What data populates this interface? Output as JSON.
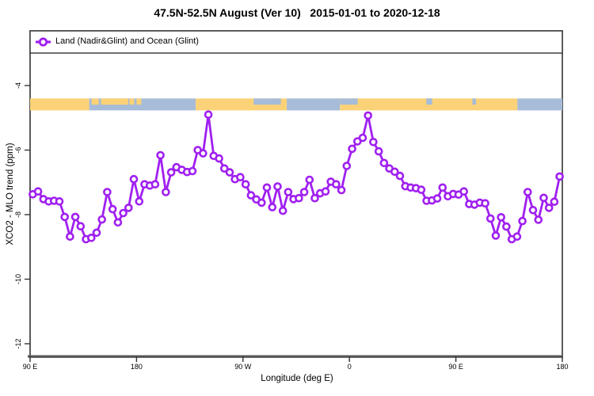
{
  "title": "47.5N-52.5N August (Ver 10)   2015-01-01 to 2020-12-18",
  "legend": {
    "label": "Land (Nadir&Glint) and Ocean (Glint)",
    "marker": "open-circle-on-line",
    "color": "#A020F0"
  },
  "axes": {
    "xlabel": "Longitude (deg E)",
    "ylabel": "XCO2 - MLO trend (ppm)",
    "x_ticks": [
      {
        "pos": 0,
        "label": "90 E"
      },
      {
        "pos": 90,
        "label": "180"
      },
      {
        "pos": 180,
        "label": "90 W"
      },
      {
        "pos": 270,
        "label": "0"
      },
      {
        "pos": 360,
        "label": "90 E"
      },
      {
        "pos": 450,
        "label": "180"
      }
    ],
    "y_ticks": [
      "-4",
      "-6",
      "-8",
      "-10",
      "-12"
    ]
  },
  "chart_data": {
    "type": "line",
    "title": "47.5N-52.5N August (Ver 10)   2015-01-01 to 2020-12-18",
    "xlabel": "Longitude (deg E)",
    "ylabel": "XCO2 - MLO trend (ppm)",
    "x_unit": "degrees east of 90E along axis (axis spans 450 deg, wrapping 90E-180-90W-0-90E-180)",
    "xlim": [
      0,
      450
    ],
    "ylim": [
      -12.45,
      -2.3
    ],
    "y_tick_values": [
      -4,
      -6,
      -8,
      -10,
      -12
    ],
    "grid": false,
    "legend_position": "top-left full-width box",
    "x": [
      2.25,
      6.75,
      11.25,
      15.75,
      20.25,
      24.75,
      29.25,
      33.75,
      38.25,
      42.75,
      47.25,
      51.75,
      56.25,
      60.75,
      65.25,
      69.75,
      74.25,
      78.75,
      83.25,
      87.75,
      92.25,
      96.75,
      101.25,
      105.75,
      110.25,
      114.75,
      119.25,
      123.75,
      128.25,
      132.75,
      137.25,
      141.75,
      146.25,
      150.75,
      155.25,
      159.75,
      164.25,
      168.75,
      173.25,
      177.75,
      182.25,
      186.75,
      191.25,
      195.75,
      200.25,
      204.75,
      209.25,
      213.75,
      218.25,
      222.75,
      227.25,
      231.75,
      236.25,
      240.75,
      245.25,
      249.75,
      254.25,
      258.75,
      263.25,
      267.75,
      272.25,
      276.75,
      281.25,
      285.75,
      290.25,
      294.75,
      299.25,
      303.75,
      308.25,
      312.75,
      317.25,
      321.75,
      326.25,
      330.75,
      335.25,
      339.75,
      344.25,
      348.75,
      353.25,
      357.75,
      362.25,
      366.75,
      371.25,
      375.75,
      380.25,
      384.75,
      389.25,
      393.75,
      398.25,
      402.75,
      407.25,
      411.75,
      416.25,
      420.75,
      425.25,
      429.75,
      434.25,
      438.75,
      443.25,
      447.75
    ],
    "series": [
      {
        "name": "Land (Nadir&Glint) and Ocean (Glint)",
        "color": "#A020F0",
        "marker": "open-circle",
        "values": [
          -7.37,
          -7.28,
          -7.52,
          -7.59,
          -7.57,
          -7.59,
          -8.07,
          -8.68,
          -8.07,
          -8.36,
          -8.76,
          -8.72,
          -8.56,
          -8.15,
          -7.3,
          -7.83,
          -8.24,
          -7.95,
          -7.79,
          -6.9,
          -7.59,
          -7.06,
          -7.1,
          -7.06,
          -6.16,
          -7.3,
          -6.69,
          -6.53,
          -6.61,
          -6.68,
          -6.65,
          -6.0,
          -6.1,
          -4.9,
          -6.18,
          -6.26,
          -6.57,
          -6.69,
          -6.9,
          -6.84,
          -7.06,
          -7.4,
          -7.53,
          -7.63,
          -7.16,
          -7.77,
          -7.13,
          -7.88,
          -7.3,
          -7.52,
          -7.49,
          -7.3,
          -6.92,
          -7.49,
          -7.34,
          -7.28,
          -6.98,
          -7.06,
          -7.24,
          -6.49,
          -5.96,
          -5.73,
          -5.62,
          -4.93,
          -5.75,
          -6.04,
          -6.4,
          -6.57,
          -6.67,
          -6.8,
          -7.12,
          -7.16,
          -7.18,
          -7.23,
          -7.57,
          -7.56,
          -7.5,
          -7.16,
          -7.43,
          -7.36,
          -7.38,
          -7.28,
          -7.67,
          -7.69,
          -7.63,
          -7.65,
          -8.12,
          -8.65,
          -8.08,
          -8.37,
          -8.76,
          -8.68,
          -8.2,
          -7.3,
          -7.86,
          -8.16,
          -7.48,
          -7.79,
          -7.6,
          -6.82
        ]
      }
    ],
    "map_strip": {
      "description": "land/ocean map band for latitude 47.5N-52.5N drawn across plot near y=-4.5 ppm",
      "land_color": "#FBD277",
      "ocean_color": "#A7BCD8",
      "y_ppm_range": [
        -4.4,
        -4.77
      ],
      "full_segments": [
        {
          "t0": 0,
          "t1": 50,
          "type": "land"
        },
        {
          "t0": 50,
          "t1": 140,
          "type": "ocean"
        },
        {
          "t0": 140,
          "t1": 217,
          "type": "land"
        },
        {
          "t0": 217,
          "t1": 262,
          "type": "ocean"
        },
        {
          "t0": 262,
          "t1": 412,
          "type": "land"
        },
        {
          "t0": 412,
          "t1": 450,
          "type": "ocean"
        }
      ],
      "top_half_patches": [
        {
          "t0": 52,
          "t1": 58,
          "type": "land"
        },
        {
          "t0": 60,
          "t1": 83,
          "type": "land"
        },
        {
          "t0": 84,
          "t1": 88,
          "type": "land"
        },
        {
          "t0": 90,
          "t1": 94,
          "type": "land"
        },
        {
          "t0": 189,
          "t1": 212,
          "type": "ocean"
        },
        {
          "t0": 262,
          "t1": 277,
          "type": "ocean"
        },
        {
          "t0": 335,
          "t1": 340,
          "type": "ocean"
        },
        {
          "t0": 374,
          "t1": 377,
          "type": "ocean"
        }
      ]
    }
  }
}
